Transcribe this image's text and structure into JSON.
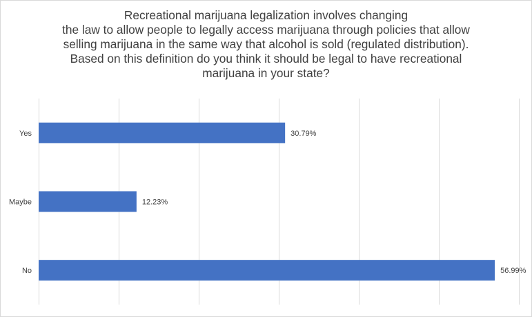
{
  "chart_data": {
    "type": "bar",
    "orientation": "horizontal",
    "title_lines": [
      "Recreational marijuana legalization involves changing",
      "the law to allow people to legally access marijuana through policies that allow",
      "selling marijuana in the same way that alcohol is sold (regulated distribution).",
      "Based on this definition do you think it should be legal to have recreational",
      "marijuana in your state?"
    ],
    "categories": [
      "Yes",
      "Maybe",
      "No"
    ],
    "values": [
      30.79,
      12.23,
      56.99
    ],
    "data_labels": [
      "30.79%",
      "12.23%",
      "56.99%"
    ],
    "value_unit": "%",
    "xlim": [
      0,
      60
    ],
    "grid": true,
    "bar_color": "#4472c4",
    "grid_color": "#d9d9d9",
    "legend": "none"
  }
}
